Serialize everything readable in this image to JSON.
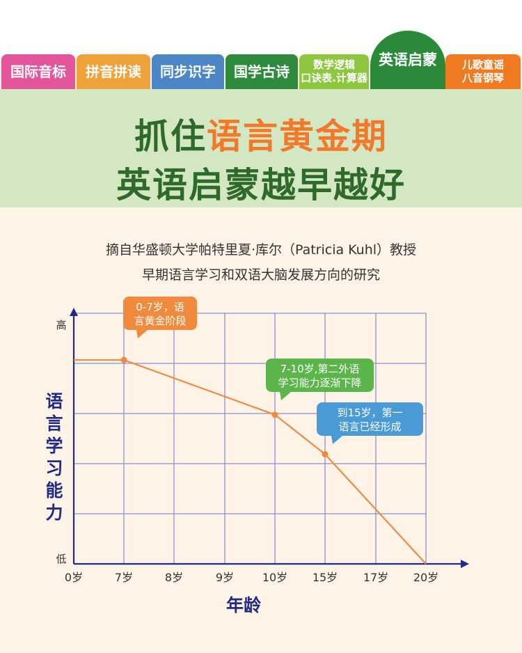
{
  "tabs": [
    {
      "lines": [
        "国际音标"
      ],
      "color": "#e3559a"
    },
    {
      "lines": [
        "拼音拼读"
      ],
      "color": "#f0a23a"
    },
    {
      "lines": [
        "同步识字"
      ],
      "color": "#4c86c6"
    },
    {
      "lines": [
        "国学古诗"
      ],
      "color": "#2e8b3e"
    },
    {
      "lines": [
        "数学逻辑",
        "口诀表.计算器"
      ],
      "color": "#8dc63f"
    },
    {
      "lines": [
        "英语启蒙"
      ],
      "color": "#2a8a3a",
      "active": true
    },
    {
      "lines": [
        "儿歌童谣",
        "八音钢琴"
      ],
      "color": "#f07a22"
    }
  ],
  "hero": {
    "line1_prefix": "抓住",
    "line1_highlight": "语言黄金期",
    "line2": "英语启蒙越早越好"
  },
  "source": {
    "line1": "摘自华盛顿大学帕特里夏·库尔（Patricia Kuhl）教授",
    "line2": "早期语言学习和双语大脑发展方向的研究"
  },
  "colors": {
    "line": "#f08a3c",
    "grid": "#8a8fd6",
    "axis": "#1f2a8a",
    "bubble_orange": "#f08a3c",
    "bubble_green": "#5bb54a",
    "bubble_blue": "#4a9ad6"
  },
  "chart_data": {
    "type": "line",
    "title": "",
    "xlabel": "年龄",
    "ylabel": "语言学习能力",
    "categories": [
      "0岁",
      "7岁",
      "8岁",
      "9岁",
      "10岁",
      "15岁",
      "17岁",
      "20岁"
    ],
    "y_ticks": {
      "top": "高",
      "bottom": "低"
    },
    "ylim": [
      0,
      100
    ],
    "series": [
      {
        "values": [
          93,
          93,
          null,
          null,
          68,
          50,
          null,
          0
        ],
        "markers": [
          1,
          4,
          5
        ]
      }
    ],
    "grid": true,
    "annotations": [
      {
        "lines": [
          "0-7岁，语",
          "言黄金阶段"
        ],
        "at_index": 1,
        "color": "orange"
      },
      {
        "lines": [
          "7-10岁,第二外语",
          "学习能力逐渐下降"
        ],
        "at_index": 4,
        "color": "green"
      },
      {
        "lines": [
          "到15岁，第一",
          "语言已经形成"
        ],
        "at_index": 5,
        "color": "blue"
      }
    ]
  }
}
